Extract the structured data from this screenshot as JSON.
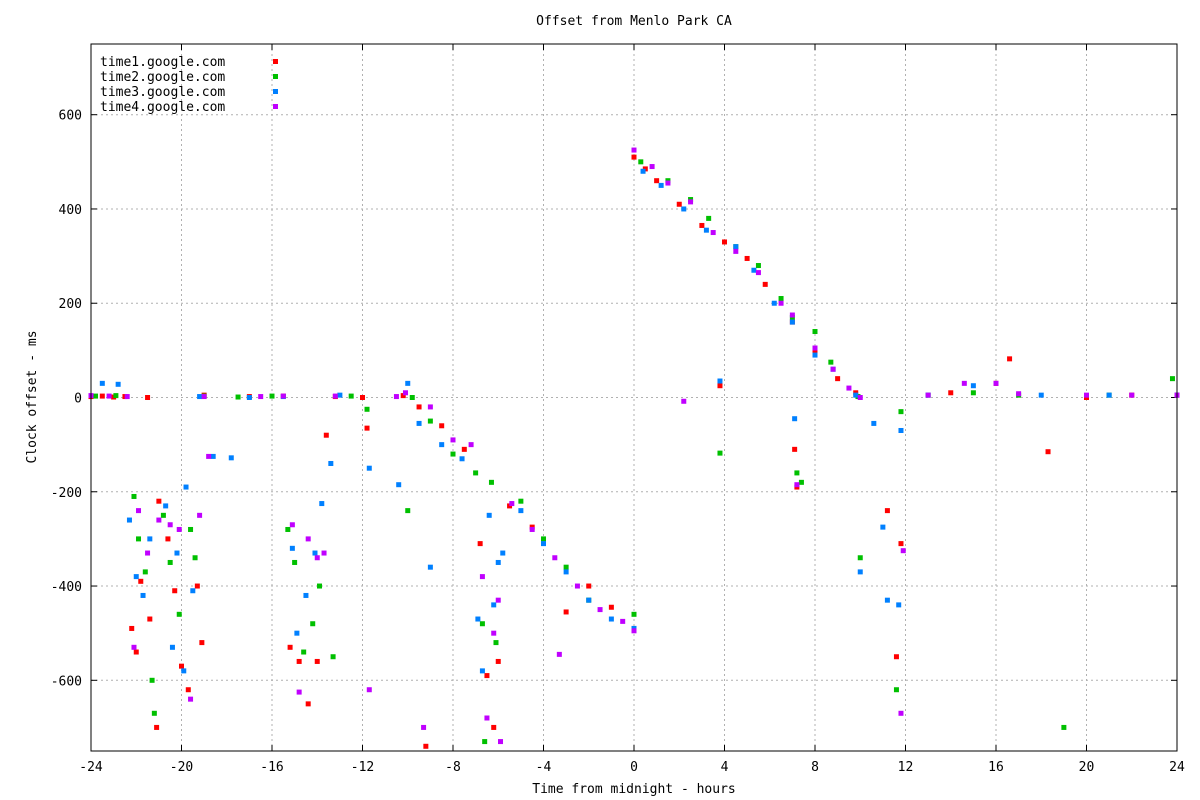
{
  "chart_data": {
    "type": "scatter",
    "title": "Offset from Menlo Park CA",
    "xlabel": "Time from midnight - hours",
    "ylabel": "Clock offset - ms",
    "xlim": [
      -24,
      24
    ],
    "ylim": [
      -750,
      750
    ],
    "xticks": [
      -24,
      -20,
      -16,
      -12,
      -8,
      -4,
      0,
      4,
      8,
      12,
      16,
      20,
      24
    ],
    "yticks": [
      -600,
      -400,
      -200,
      0,
      200,
      400,
      600
    ],
    "grid": true,
    "legend_position": "top-left",
    "series": [
      {
        "name": "time1.google.com",
        "color": "#ff0000",
        "points": [
          [
            -24,
            2
          ],
          [
            -23.5,
            3
          ],
          [
            -23,
            1
          ],
          [
            -22.5,
            2
          ],
          [
            -21.5,
            0
          ],
          [
            -22.2,
            -490
          ],
          [
            -22,
            -540
          ],
          [
            -21.8,
            -390
          ],
          [
            -21.4,
            -470
          ],
          [
            -21.1,
            -700
          ],
          [
            -21,
            -220
          ],
          [
            -20.6,
            -300
          ],
          [
            -20.3,
            -410
          ],
          [
            -20,
            -570
          ],
          [
            -19.7,
            -620
          ],
          [
            -19.3,
            -400
          ],
          [
            -19.1,
            -520
          ],
          [
            -19,
            5
          ],
          [
            -17,
            2
          ],
          [
            -15.5,
            3
          ],
          [
            -15.2,
            -530
          ],
          [
            -14.8,
            -560
          ],
          [
            -14.4,
            -650
          ],
          [
            -14,
            -560
          ],
          [
            -13.6,
            -80
          ],
          [
            -13.2,
            2
          ],
          [
            -12,
            0
          ],
          [
            -11.8,
            -65
          ],
          [
            -10.2,
            4
          ],
          [
            -9.5,
            -20
          ],
          [
            -9.2,
            -740
          ],
          [
            -8.5,
            -60
          ],
          [
            -7.5,
            -110
          ],
          [
            -6.8,
            -310
          ],
          [
            -6.5,
            -590
          ],
          [
            -6.2,
            -700
          ],
          [
            -6,
            -560
          ],
          [
            -5.5,
            -230
          ],
          [
            -4.5,
            -275
          ],
          [
            -3,
            -455
          ],
          [
            -2,
            -400
          ],
          [
            -1,
            -445
          ],
          [
            0,
            -490
          ],
          [
            0,
            510
          ],
          [
            0.5,
            485
          ],
          [
            1,
            460
          ],
          [
            2,
            410
          ],
          [
            3,
            365
          ],
          [
            3.8,
            25
          ],
          [
            4,
            330
          ],
          [
            5,
            295
          ],
          [
            5.8,
            240
          ],
          [
            7,
            160
          ],
          [
            7.1,
            -110
          ],
          [
            7.2,
            -190
          ],
          [
            8,
            95
          ],
          [
            9,
            40
          ],
          [
            9.8,
            10
          ],
          [
            11.2,
            -240
          ],
          [
            11.6,
            -550
          ],
          [
            11.8,
            -310
          ],
          [
            14,
            10
          ],
          [
            16,
            30
          ],
          [
            16.6,
            82
          ],
          [
            18.3,
            -115
          ],
          [
            20,
            0
          ],
          [
            22,
            5
          ],
          [
            24,
            5
          ]
        ]
      },
      {
        "name": "time2.google.com",
        "color": "#00c000",
        "points": [
          [
            -23.8,
            3
          ],
          [
            -22.9,
            4
          ],
          [
            -22.1,
            -210
          ],
          [
            -21.9,
            -300
          ],
          [
            -21.6,
            -370
          ],
          [
            -21.3,
            -600
          ],
          [
            -21.2,
            -670
          ],
          [
            -20.8,
            -250
          ],
          [
            -20.5,
            -350
          ],
          [
            -20.1,
            -460
          ],
          [
            -19.6,
            -280
          ],
          [
            -19.4,
            -340
          ],
          [
            -19,
            3
          ],
          [
            -17.5,
            1
          ],
          [
            -16,
            3
          ],
          [
            -15.3,
            -280
          ],
          [
            -15,
            -350
          ],
          [
            -14.6,
            -540
          ],
          [
            -14.2,
            -480
          ],
          [
            -13.9,
            -400
          ],
          [
            -13.3,
            -550
          ],
          [
            -12.5,
            3
          ],
          [
            -11.8,
            -25
          ],
          [
            -10,
            -240
          ],
          [
            -9.8,
            0
          ],
          [
            -9,
            -50
          ],
          [
            -8,
            -120
          ],
          [
            -7,
            -160
          ],
          [
            -6.7,
            -480
          ],
          [
            -6.6,
            -730
          ],
          [
            -6.3,
            -180
          ],
          [
            -6.1,
            -520
          ],
          [
            -5,
            -220
          ],
          [
            -4,
            -300
          ],
          [
            -3,
            -360
          ],
          [
            -2,
            -430
          ],
          [
            0,
            -460
          ],
          [
            0.3,
            500
          ],
          [
            1.5,
            460
          ],
          [
            2.5,
            420
          ],
          [
            3.3,
            380
          ],
          [
            3.8,
            -118
          ],
          [
            4.5,
            320
          ],
          [
            5.5,
            280
          ],
          [
            6.5,
            210
          ],
          [
            7,
            170
          ],
          [
            7.2,
            -160
          ],
          [
            7.4,
            -180
          ],
          [
            8,
            140
          ],
          [
            8.7,
            75
          ],
          [
            9.9,
            2
          ],
          [
            10,
            -340
          ],
          [
            11.6,
            -620
          ],
          [
            11.8,
            -30
          ],
          [
            13,
            5
          ],
          [
            15,
            10
          ],
          [
            17,
            5
          ],
          [
            19,
            -700
          ],
          [
            21,
            5
          ],
          [
            23.8,
            40
          ]
        ]
      },
      {
        "name": "time3.google.com",
        "color": "#0080ff",
        "points": [
          [
            -23.5,
            30
          ],
          [
            -22.8,
            28
          ],
          [
            -22.3,
            -260
          ],
          [
            -22,
            -380
          ],
          [
            -21.7,
            -420
          ],
          [
            -21.4,
            -300
          ],
          [
            -20.7,
            -230
          ],
          [
            -20.4,
            -530
          ],
          [
            -20.2,
            -330
          ],
          [
            -19.9,
            -580
          ],
          [
            -19.8,
            -190
          ],
          [
            -19.5,
            -410
          ],
          [
            -19.2,
            2
          ],
          [
            -18.6,
            -125
          ],
          [
            -17.8,
            -128
          ],
          [
            -17,
            0
          ],
          [
            -15.5,
            2
          ],
          [
            -15.1,
            -320
          ],
          [
            -14.9,
            -500
          ],
          [
            -14.5,
            -420
          ],
          [
            -14.1,
            -330
          ],
          [
            -13.8,
            -225
          ],
          [
            -13.4,
            -140
          ],
          [
            -13,
            5
          ],
          [
            -11.7,
            -150
          ],
          [
            -10.4,
            -185
          ],
          [
            -10,
            30
          ],
          [
            -9.5,
            -55
          ],
          [
            -9,
            -360
          ],
          [
            -8.5,
            -100
          ],
          [
            -7.6,
            -130
          ],
          [
            -6.9,
            -470
          ],
          [
            -6.7,
            -580
          ],
          [
            -6.4,
            -250
          ],
          [
            -6.2,
            -440
          ],
          [
            -6,
            -350
          ],
          [
            -5.8,
            -330
          ],
          [
            -5,
            -240
          ],
          [
            -4,
            -310
          ],
          [
            -3,
            -370
          ],
          [
            -2,
            -430
          ],
          [
            -1,
            -470
          ],
          [
            0,
            -490
          ],
          [
            0.4,
            480
          ],
          [
            1.2,
            450
          ],
          [
            2.2,
            400
          ],
          [
            3.2,
            355
          ],
          [
            3.8,
            35
          ],
          [
            4.5,
            320
          ],
          [
            5.3,
            270
          ],
          [
            6.2,
            200
          ],
          [
            7,
            160
          ],
          [
            7.1,
            -45
          ],
          [
            8,
            90
          ],
          [
            8.8,
            60
          ],
          [
            9.8,
            5
          ],
          [
            10,
            -370
          ],
          [
            10.6,
            -55
          ],
          [
            11,
            -275
          ],
          [
            11.2,
            -430
          ],
          [
            11.7,
            -440
          ],
          [
            11.8,
            -70
          ],
          [
            13,
            5
          ],
          [
            15,
            25
          ],
          [
            18,
            5
          ],
          [
            21,
            5
          ],
          [
            24,
            5
          ]
        ]
      },
      {
        "name": "time4.google.com",
        "color": "#c000ff",
        "points": [
          [
            -24,
            4
          ],
          [
            -23.2,
            3
          ],
          [
            -22.4,
            2
          ],
          [
            -22.1,
            -530
          ],
          [
            -21.9,
            -240
          ],
          [
            -21.5,
            -330
          ],
          [
            -21,
            -260
          ],
          [
            -20.5,
            -270
          ],
          [
            -20.1,
            -280
          ],
          [
            -19.6,
            -640
          ],
          [
            -19.2,
            -250
          ],
          [
            -19,
            2
          ],
          [
            -18.8,
            -125
          ],
          [
            -16.5,
            2
          ],
          [
            -15.5,
            3
          ],
          [
            -15.1,
            -270
          ],
          [
            -14.8,
            -625
          ],
          [
            -14.4,
            -300
          ],
          [
            -14,
            -340
          ],
          [
            -13.7,
            -330
          ],
          [
            -13.2,
            3
          ],
          [
            -11.7,
            -620
          ],
          [
            -10.5,
            2
          ],
          [
            -10.1,
            10
          ],
          [
            -9.3,
            -700
          ],
          [
            -9,
            -20
          ],
          [
            -8,
            -90
          ],
          [
            -7.2,
            -100
          ],
          [
            -6.7,
            -380
          ],
          [
            -6.5,
            -680
          ],
          [
            -6.2,
            -500
          ],
          [
            -6,
            -430
          ],
          [
            -5.9,
            -730
          ],
          [
            -5.4,
            -225
          ],
          [
            -4.5,
            -280
          ],
          [
            -3.5,
            -340
          ],
          [
            -3.3,
            -545
          ],
          [
            -2.5,
            -400
          ],
          [
            -1.5,
            -450
          ],
          [
            -0.5,
            -475
          ],
          [
            0,
            -495
          ],
          [
            0,
            525
          ],
          [
            0.8,
            490
          ],
          [
            1.5,
            455
          ],
          [
            2.2,
            -8
          ],
          [
            2.5,
            415
          ],
          [
            3.5,
            350
          ],
          [
            4.5,
            310
          ],
          [
            5.5,
            265
          ],
          [
            6.5,
            200
          ],
          [
            7,
            175
          ],
          [
            7.2,
            -185
          ],
          [
            8,
            105
          ],
          [
            8.8,
            60
          ],
          [
            9.5,
            20
          ],
          [
            10,
            0
          ],
          [
            11.8,
            -670
          ],
          [
            11.9,
            -325
          ],
          [
            13,
            5
          ],
          [
            14.6,
            30
          ],
          [
            16,
            30
          ],
          [
            17,
            8
          ],
          [
            20,
            5
          ],
          [
            22,
            5
          ],
          [
            24,
            5
          ]
        ]
      }
    ]
  }
}
